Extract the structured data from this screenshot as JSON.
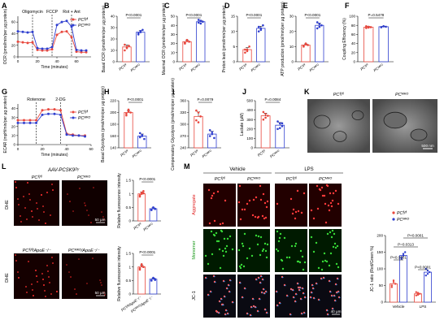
{
  "figure": {
    "panels": [
      {
        "id": "A",
        "label": "A"
      },
      {
        "id": "B",
        "label": "B"
      },
      {
        "id": "C",
        "label": "C"
      },
      {
        "id": "D",
        "label": "D"
      },
      {
        "id": "E",
        "label": "E"
      },
      {
        "id": "F",
        "label": "F"
      },
      {
        "id": "G",
        "label": "G"
      },
      {
        "id": "H",
        "label": "H"
      },
      {
        "id": "I",
        "label": "I"
      },
      {
        "id": "J",
        "label": "J"
      },
      {
        "id": "K",
        "label": "K"
      },
      {
        "id": "L",
        "label": "L"
      },
      {
        "id": "M",
        "label": "M"
      }
    ],
    "colors": {
      "wt": "#e8473d",
      "ko": "#2f3fcf"
    },
    "legend": {
      "wt": "PCᶠˡ/ᶠˡ",
      "ko": "PCᴹᴷᴼ"
    },
    "k_labels": {
      "left": "PCᶠˡ/ᶠˡ",
      "right": "PCᴹᴷᴼ",
      "scale": "500 nm"
    },
    "l_title": "AAV-PCSK9ᴰʸ",
    "l_top": {
      "left": "PCᶠˡ/ᶠˡ",
      "right": "PCᴹᴷᴼ",
      "row": "DHE",
      "scale": "50 μm"
    },
    "l_bot": {
      "left": "PCᶠˡ/ᶠˡ/ApoE⁻/⁻",
      "right": "PCᴹᴷᴼ/ApoE⁻/⁻",
      "row": "DHE",
      "scale": "50 μm"
    },
    "m": {
      "vehicle": "Vehicle",
      "lps": "LPS",
      "wt": "PCᶠˡ/ᶠˡ",
      "ko": "PCᴹᴷᴼ",
      "rows": [
        "Aggregate",
        "Monomer",
        "JC-1"
      ],
      "scale": "40 μm"
    }
  },
  "chart_data": [
    {
      "panel": "A",
      "type": "line",
      "xlabel": "Time (minutes)",
      "ylabel": "OCR (pmol/min/per μg protein)",
      "x": [
        0,
        5,
        10,
        15,
        20,
        25,
        30,
        35,
        40,
        45,
        50,
        55,
        60,
        65,
        70
      ],
      "xticks": [
        0,
        20,
        40,
        60
      ],
      "yticks": [
        0,
        20,
        40,
        60
      ],
      "ylim": [
        0,
        70
      ],
      "xlim": [
        0,
        75
      ],
      "markers": [
        {
          "x": 15,
          "label": "Oligomycin"
        },
        {
          "x": 35,
          "label": "FCCP"
        },
        {
          "x": 55,
          "label": "Rot + Ant"
        }
      ],
      "series": [
        {
          "name": "PCᶠˡ/ᶠˡ",
          "values": [
            26,
            25,
            24,
            25,
            12,
            11,
            11,
            13,
            38,
            43,
            44,
            34,
            9,
            8,
            8
          ]
        },
        {
          "name": "PCᴹᴷᴼ",
          "values": [
            44,
            43,
            42,
            43,
            15,
            14,
            14,
            17,
            55,
            60,
            62,
            52,
            12,
            11,
            11
          ]
        }
      ]
    },
    {
      "panel": "B",
      "type": "bar",
      "ylabel": "Basal OCR (pmol/min/per μg protein)",
      "categories": [
        "PCᶠˡ/ᶠˡ",
        "PCᴹᴷᴼ"
      ],
      "values": [
        13,
        26
      ],
      "ylim": [
        0,
        40
      ],
      "yticks": [
        0,
        10,
        20,
        30,
        40
      ],
      "p": "P<0.0001",
      "points": [
        [
          10,
          12,
          14,
          15,
          13
        ],
        [
          24,
          27,
          28,
          25,
          26
        ]
      ]
    },
    {
      "panel": "C",
      "type": "bar",
      "ylabel": "Maximal OCR (pmol/min/per μg protein)",
      "categories": [
        "PCᶠˡ/ᶠˡ",
        "PCᴹᴷᴼ"
      ],
      "values": [
        22,
        44
      ],
      "ylim": [
        0,
        50
      ],
      "yticks": [
        0,
        10,
        20,
        30,
        40,
        50
      ],
      "p": "P<0.0001",
      "points": [
        [
          20,
          24,
          22,
          21,
          23
        ],
        [
          43,
          45,
          44,
          46,
          42
        ]
      ]
    },
    {
      "panel": "D",
      "type": "bar",
      "ylabel": "Proton leak (pmol/min/per μg protein)",
      "categories": [
        "PCᶠˡ/ᶠˡ",
        "PCᴹᴷᴼ"
      ],
      "values": [
        4,
        11
      ],
      "ylim": [
        0,
        15
      ],
      "yticks": [
        0,
        5,
        10,
        15
      ],
      "p": "P<0.0001",
      "points": [
        [
          3,
          4,
          5,
          4,
          3.5
        ],
        [
          10,
          11,
          12,
          11.5,
          10.5
        ]
      ]
    },
    {
      "panel": "E",
      "type": "bar",
      "ylabel": "ATP production (pmol/min/per μg protein)",
      "categories": [
        "PCᶠˡ/ᶠˡ",
        "PCᴹᴷᴼ"
      ],
      "values": [
        11,
        24
      ],
      "ylim": [
        0,
        30
      ],
      "yticks": [
        0,
        10,
        20,
        30
      ],
      "p": "P<0.0001",
      "points": [
        [
          10,
          12,
          11,
          10.5,
          11.5
        ],
        [
          22,
          25,
          24,
          26,
          23
        ]
      ]
    },
    {
      "panel": "F",
      "type": "bar",
      "ylabel": "Coupling Efficiency (%)",
      "categories": [
        "PCᶠˡ/ᶠˡ",
        "PCᴹᴷᴼ"
      ],
      "values": [
        76,
        77
      ],
      "ylim": [
        0,
        100
      ],
      "yticks": [
        0,
        20,
        40,
        60,
        80,
        100
      ],
      "p": "P=0.5478",
      "points": [
        [
          74,
          77,
          76,
          78,
          75
        ],
        [
          76,
          78,
          77,
          76,
          78
        ]
      ]
    },
    {
      "panel": "G",
      "type": "line",
      "xlabel": "Time (minutes)",
      "ylabel": "ECAR (mpH/min/per μg protein)",
      "x": [
        0,
        5,
        10,
        15,
        20,
        25,
        30,
        35,
        40,
        45,
        50,
        55
      ],
      "xticks": [
        0,
        20,
        40,
        60
      ],
      "yticks": [
        0,
        10,
        20,
        30,
        40
      ],
      "ylim": [
        0,
        45
      ],
      "xlim": [
        0,
        60
      ],
      "markers": [
        {
          "x": 15,
          "label": "Rotenone"
        },
        {
          "x": 35,
          "label": "2-DG"
        }
      ],
      "series": [
        {
          "name": "PCᶠˡ/ᶠˡ",
          "values": [
            27,
            27,
            27,
            27,
            38,
            39,
            39,
            38,
            12,
            11,
            10,
            10
          ]
        },
        {
          "name": "PCᴹᴷᴼ",
          "values": [
            24,
            24,
            24,
            24,
            33,
            34,
            34,
            33,
            11,
            10,
            10,
            9
          ]
        }
      ]
    },
    {
      "panel": "H",
      "type": "bar",
      "ylabel": "Basal Glycolysis (pmol/min/per μg protein)",
      "categories": [
        "PCᶠˡ/ᶠˡ",
        "PCᴹᴷᴼ"
      ],
      "values": [
        200,
        160
      ],
      "ylim": [
        140,
        220
      ],
      "yticks": [
        140,
        160,
        180,
        200,
        220
      ],
      "p": "P<0.0001",
      "points": [
        [
          195,
          205,
          200,
          198,
          202
        ],
        [
          158,
          162,
          155,
          165,
          160
        ]
      ]
    },
    {
      "panel": "I",
      "type": "bar",
      "ylabel": "Compensatory Glycolysis (pmol/min/per μg protein)",
      "categories": [
        "PCᶠˡ/ᶠˡ",
        "PCᴹᴷᴼ"
      ],
      "values": [
        320,
        275
      ],
      "ylim": [
        240,
        360
      ],
      "yticks": [
        240,
        270,
        300,
        330,
        360
      ],
      "p": "P=0.0079",
      "points": [
        [
          310,
          330,
          320,
          335,
          305
        ],
        [
          270,
          280,
          265,
          285,
          275
        ]
      ]
    },
    {
      "panel": "J",
      "type": "bar",
      "ylabel": "Lactate (μM)",
      "categories": [
        "PCᶠˡ/ᶠˡ",
        "PCᴹᴷᴼ"
      ],
      "values": [
        340,
        240
      ],
      "ylim": [
        0,
        500
      ],
      "yticks": [
        0,
        100,
        200,
        300,
        400,
        500
      ],
      "p": "P=0.0084",
      "points": [
        [
          300,
          360,
          340,
          380,
          320
        ],
        [
          200,
          260,
          230,
          280,
          210,
          260
        ]
      ]
    },
    {
      "panel": "L1",
      "type": "bar",
      "ylabel": "Relative fluorescence intensity",
      "categories": [
        "PCᶠˡ/ᶠˡ",
        "PCᴹᴷᴼ"
      ],
      "values": [
        1.0,
        0.45
      ],
      "ylim": [
        0,
        1.5
      ],
      "yticks": [
        0,
        0.5,
        1.0,
        1.5
      ],
      "p": "P<0.0001",
      "points": [
        [
          0.95,
          1.05,
          1.1,
          0.9,
          1.0,
          1.02
        ],
        [
          0.4,
          0.5,
          0.45,
          0.42,
          0.48,
          0.44
        ]
      ]
    },
    {
      "panel": "L2",
      "type": "bar",
      "ylabel": "Relative fluorescence intensity",
      "categories": [
        "PCᶠˡ/ᶠˡ/ApoE⁻/⁻",
        "PCᴹᴷᴼ/ApoE⁻/⁻"
      ],
      "values": [
        1.0,
        0.55
      ],
      "ylim": [
        0,
        1.5
      ],
      "yticks": [
        0,
        0.5,
        1.0,
        1.5
      ],
      "p": "P<0.0001",
      "points": [
        [
          0.9,
          1.1,
          1.0,
          0.95,
          1.05,
          1.0
        ],
        [
          0.5,
          0.6,
          0.55,
          0.5,
          0.58,
          0.52
        ]
      ]
    },
    {
      "panel": "M",
      "type": "bar",
      "ylabel": "JC-1 ratio (Red/Green %)",
      "categories": [
        "Vehicle",
        "LPS"
      ],
      "series": [
        {
          "name": "PCᶠˡ/ᶠˡ",
          "values": [
            55,
            25
          ]
        },
        {
          "name": "PCᴹᴷᴼ",
          "values": [
            140,
            90
          ]
        }
      ],
      "ylim": [
        0,
        200
      ],
      "yticks": [
        0,
        50,
        100,
        150,
        200
      ],
      "pvalues": [
        {
          "label": "P<0.0001",
          "pair": [
            0,
            1
          ]
        },
        {
          "label": "P<0.0001",
          "pair": [
            2,
            3
          ]
        },
        {
          "label": "P=0.0313",
          "pair": [
            0,
            2
          ]
        },
        {
          "label": "P<0.0001",
          "pair": [
            1,
            3
          ]
        }
      ],
      "points": [
        [
          45,
          60,
          55,
          50,
          65
        ],
        [
          130,
          145,
          150,
          135,
          140
        ],
        [
          20,
          28,
          25,
          30,
          22
        ],
        [
          80,
          95,
          90,
          100,
          85
        ]
      ]
    }
  ]
}
